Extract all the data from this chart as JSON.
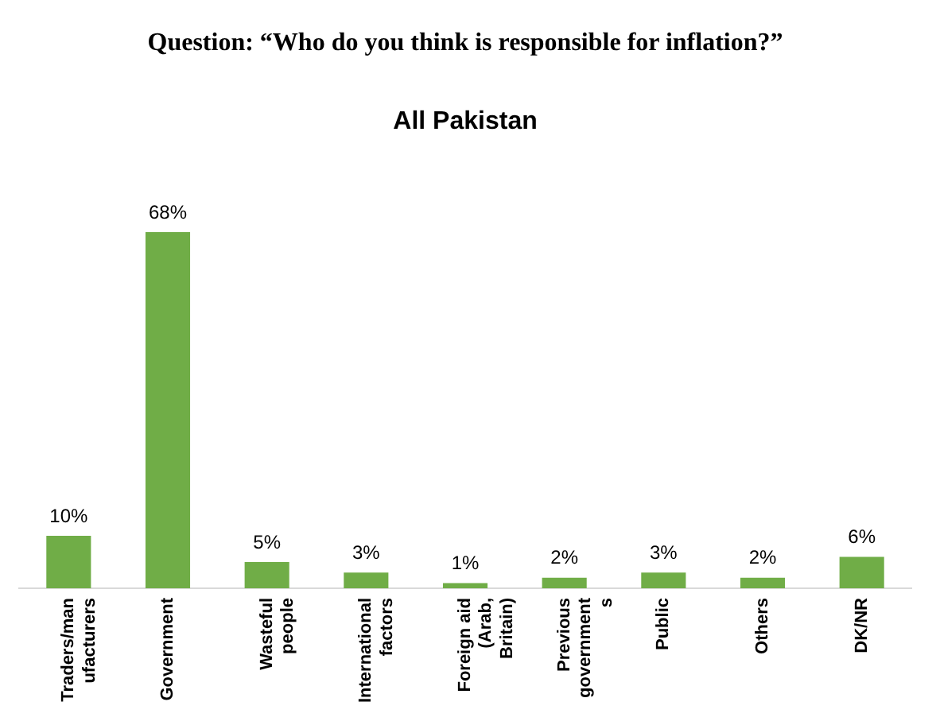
{
  "chart_data": {
    "type": "bar",
    "title": "Question: “Who do you think is responsible for inflation?”",
    "subtitle": "All Pakistan",
    "categories": [
      "Traders/manufacturers",
      "Government",
      "Wasteful people",
      "International factors",
      "Foreign aid (Arab, Britain)",
      "Previous governments",
      "Public",
      "Others",
      "DK/NR"
    ],
    "values": [
      10,
      68,
      5,
      3,
      1,
      2,
      3,
      2,
      6
    ],
    "value_labels": [
      "10%",
      "68%",
      "5%",
      "3%",
      "1%",
      "2%",
      "3%",
      "2%",
      "6%"
    ],
    "color": "#70ad47",
    "tick_labels": "x",
    "grid": false,
    "legend": false
  }
}
